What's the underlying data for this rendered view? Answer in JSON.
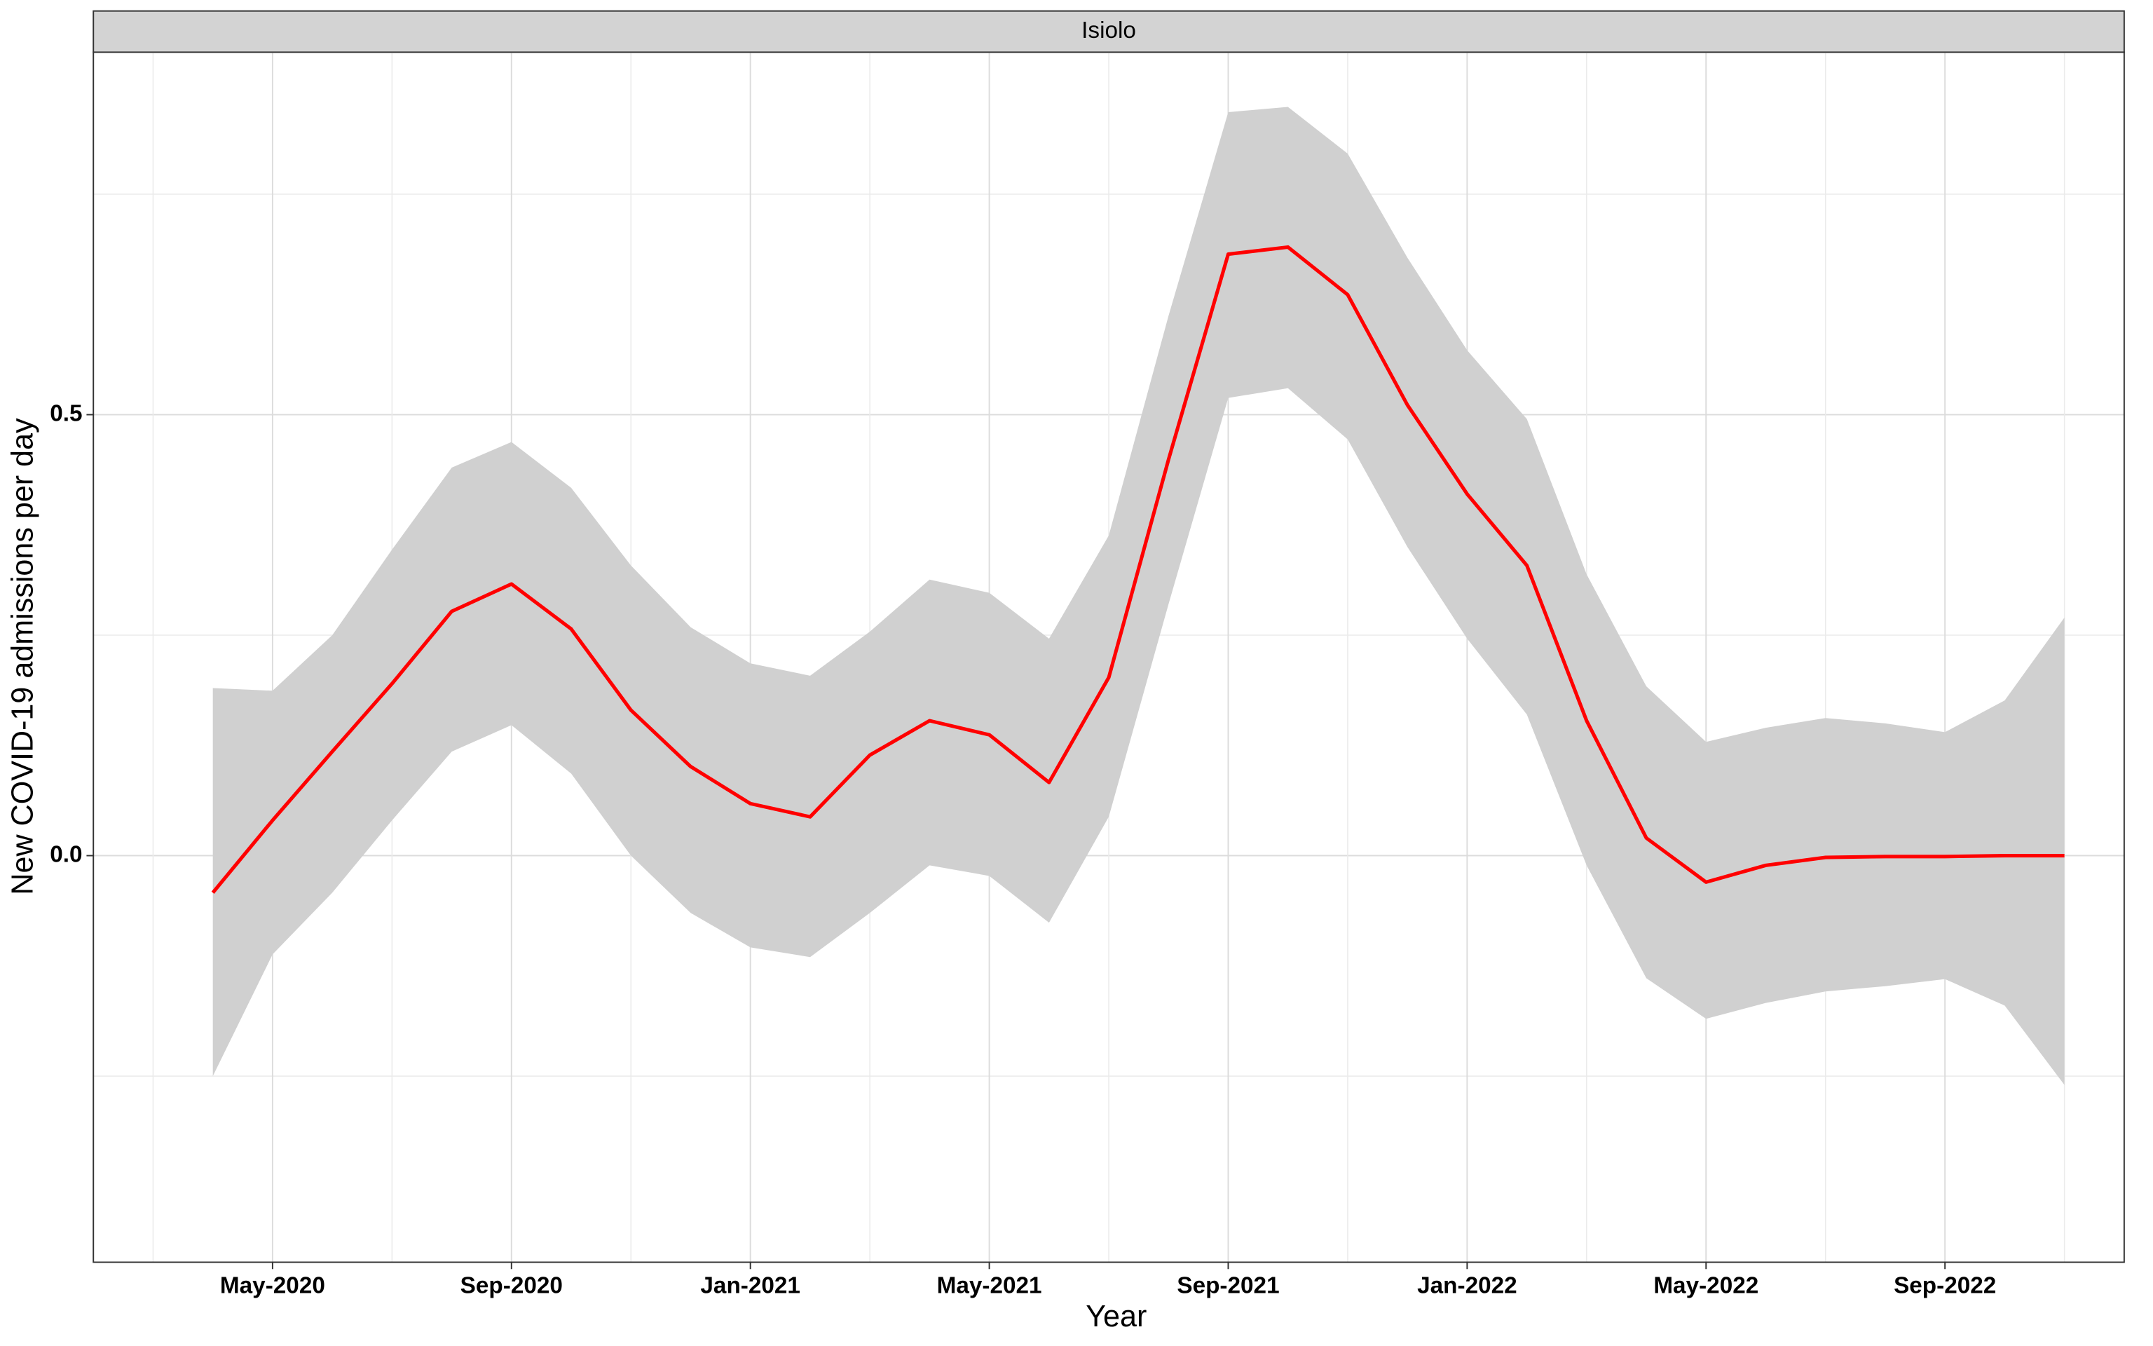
{
  "chart_data": {
    "type": "line",
    "title": "Isiolo",
    "x_label": "Year",
    "y_label": "New COVID-19 admissions per day",
    "x": [
      "2020-04",
      "2020-05",
      "2020-06",
      "2020-07",
      "2020-08",
      "2020-09",
      "2020-10",
      "2020-11",
      "2020-12",
      "2021-01",
      "2021-02",
      "2021-03",
      "2021-04",
      "2021-05",
      "2021-06",
      "2021-07",
      "2021-08",
      "2021-09",
      "2021-10",
      "2021-11",
      "2021-12",
      "2022-01",
      "2022-02",
      "2022-03",
      "2022-04",
      "2022-05",
      "2022-06",
      "2022-07",
      "2022-08",
      "2022-09",
      "2022-10",
      "2022-11"
    ],
    "values": [
      -0.042,
      0.04,
      0.118,
      0.195,
      0.277,
      0.308,
      0.257,
      0.165,
      0.101,
      0.059,
      0.044,
      0.114,
      0.153,
      0.137,
      0.083,
      0.202,
      0.449,
      0.682,
      0.69,
      0.636,
      0.511,
      0.41,
      0.329,
      0.153,
      0.02,
      -0.03,
      -0.011,
      -0.002,
      -0.001,
      -0.001,
      0.0,
      0.0
    ],
    "upper": [
      0.19,
      0.187,
      0.25,
      0.347,
      0.44,
      0.469,
      0.417,
      0.329,
      0.259,
      0.218,
      0.204,
      0.254,
      0.313,
      0.298,
      0.246,
      0.363,
      0.612,
      0.843,
      0.849,
      0.796,
      0.678,
      0.573,
      0.495,
      0.319,
      0.192,
      0.129,
      0.145,
      0.156,
      0.15,
      0.14,
      0.176,
      0.27
    ],
    "lower": [
      -0.25,
      -0.112,
      -0.042,
      0.04,
      0.118,
      0.148,
      0.093,
      0.0,
      -0.065,
      -0.104,
      -0.115,
      -0.065,
      -0.011,
      -0.023,
      -0.076,
      0.044,
      0.285,
      0.519,
      0.53,
      0.472,
      0.35,
      0.246,
      0.16,
      -0.011,
      -0.139,
      -0.185,
      -0.167,
      -0.154,
      -0.148,
      -0.14,
      -0.17,
      -0.26
    ],
    "color": "#ff0000",
    "band_color": "#d0d0d0",
    "xlim": [
      "2020-02",
      "2022-12"
    ],
    "xticks": [
      {
        "value": "2020-05",
        "label": "May-2020"
      },
      {
        "value": "2020-09",
        "label": "Sep-2020"
      },
      {
        "value": "2021-01",
        "label": "Jan-2021"
      },
      {
        "value": "2021-05",
        "label": "May-2021"
      },
      {
        "value": "2021-09",
        "label": "Sep-2021"
      },
      {
        "value": "2022-01",
        "label": "Jan-2022"
      },
      {
        "value": "2022-05",
        "label": "May-2022"
      },
      {
        "value": "2022-09",
        "label": "Sep-2022"
      }
    ],
    "ylim": [
      -0.461,
      0.911
    ],
    "yticks": [
      {
        "value": 0,
        "label": "0.0"
      },
      0.5
    ],
    "grid": true
  }
}
